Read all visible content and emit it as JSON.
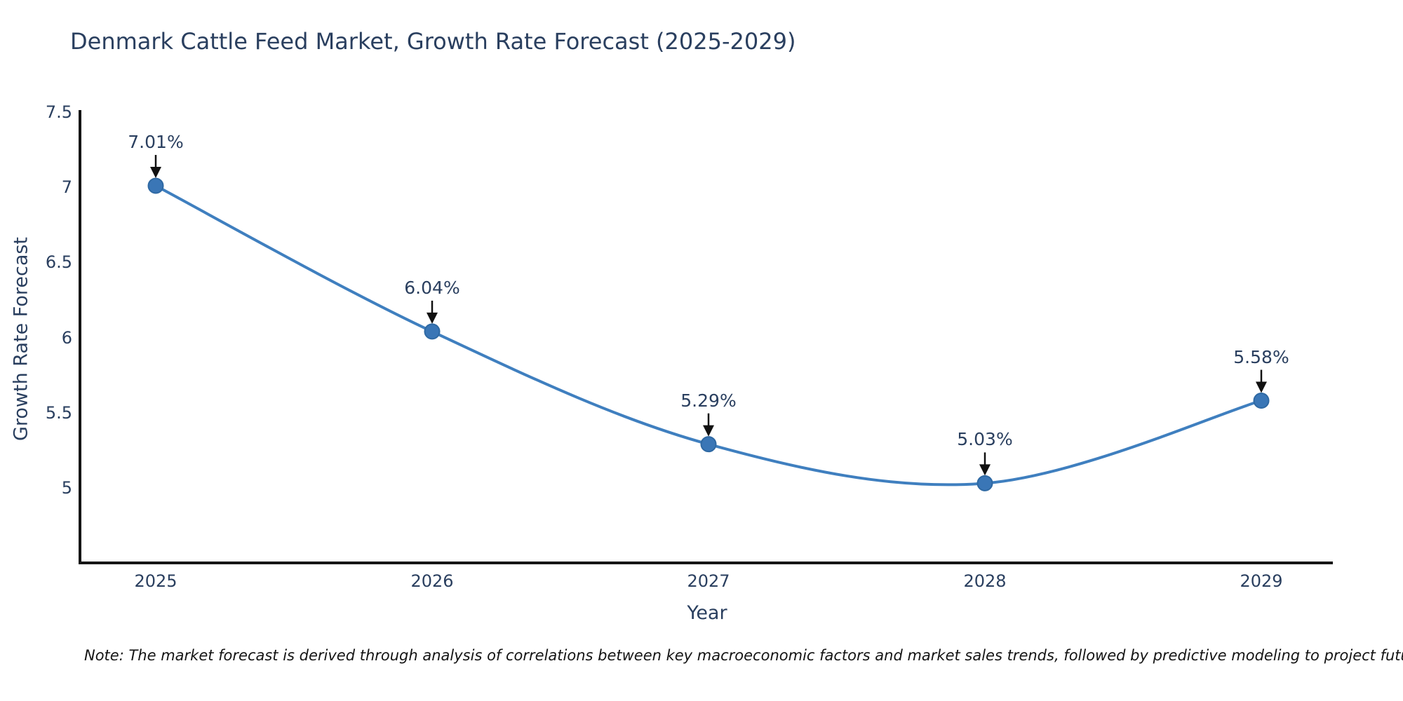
{
  "title": "Denmark Cattle Feed Market, Growth Rate Forecast (2025-2029)",
  "note": "Note: The market forecast is derived through analysis of correlations between key macroeconomic factors and market sales trends, followed by predictive modeling to project future sales",
  "chart_data": {
    "type": "line",
    "title": "Denmark Cattle Feed Market, Growth Rate Forecast (2025-2029)",
    "x": [
      2025,
      2026,
      2027,
      2028,
      2029
    ],
    "values": [
      7.01,
      6.04,
      5.29,
      5.03,
      5.58
    ],
    "labels": [
      "7.01%",
      "6.04%",
      "5.29%",
      "5.03%",
      "5.58%"
    ],
    "series_name": "Growth Rate Forecast",
    "xlabel": "Year",
    "ylabel": "Growth Rate Forecast",
    "yticks": [
      5,
      5.5,
      6,
      6.5,
      7,
      7.5
    ],
    "ylim": [
      4.5,
      7.5
    ],
    "line_shape": "spline",
    "grid": false,
    "legend": "none",
    "annotations": "value labels with down arrows above each point",
    "colors": {
      "line": "#3f7fbf",
      "marker": "#3a76b6",
      "marker_edge": "#2f69a3",
      "axis": "#161616",
      "text": "#2a3f5f",
      "arrow": "#111111",
      "background": "#ffffff"
    }
  }
}
